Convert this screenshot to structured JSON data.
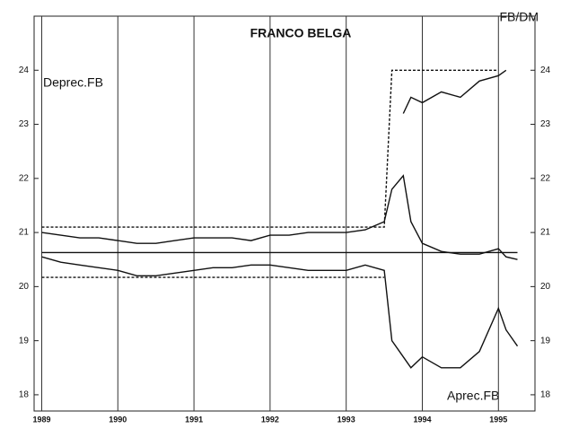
{
  "chart_data": {
    "type": "line",
    "title": "FRANCO BELGA",
    "y_label": "FB/DM",
    "annotations": [
      "Deprec.FB",
      "Aprec.FB"
    ],
    "x": [
      1989.0,
      1989.25,
      1989.5,
      1989.75,
      1990.0,
      1990.25,
      1990.5,
      1990.75,
      1991.0,
      1991.25,
      1991.5,
      1991.75,
      1992.0,
      1992.25,
      1992.5,
      1992.75,
      1993.0,
      1993.25,
      1993.5,
      1993.6,
      1993.75,
      1993.85,
      1994.0,
      1994.25,
      1994.5,
      1994.75,
      1995.0,
      1995.1,
      1995.25
    ],
    "xlim": [
      1988.9,
      1995.48
    ],
    "xticks": [
      1989,
      1990,
      1991,
      1992,
      1993,
      1994,
      1995
    ],
    "ylim": [
      17.7,
      25.0
    ],
    "yticks": [
      18,
      19,
      20,
      21,
      22,
      23,
      24
    ],
    "grid": true,
    "series": [
      {
        "color": "#111111",
        "values": [
          21.0,
          20.95,
          20.9,
          20.9,
          20.85,
          20.8,
          20.8,
          20.85,
          20.9,
          20.9,
          20.9,
          20.85,
          20.95,
          20.95,
          21.0,
          21.0,
          21.0,
          21.05,
          21.2,
          21.8,
          22.05,
          21.2,
          20.8,
          20.65,
          20.6,
          20.6,
          20.7,
          20.55,
          20.5
        ]
      },
      {
        "color": "#111111",
        "values": [
          20.55,
          20.45,
          20.4,
          20.35,
          20.3,
          20.2,
          20.2,
          20.25,
          20.3,
          20.35,
          20.35,
          20.4,
          20.4,
          20.35,
          20.3,
          20.3,
          20.3,
          20.4,
          20.3,
          19.0,
          18.7,
          18.5,
          18.7,
          18.5,
          18.5,
          18.8,
          19.6,
          19.2,
          18.9
        ]
      },
      {
        "color": "#111111",
        "values": [
          null,
          null,
          null,
          null,
          null,
          null,
          null,
          null,
          null,
          null,
          null,
          null,
          null,
          null,
          null,
          null,
          null,
          null,
          null,
          null,
          23.2,
          23.5,
          23.4,
          23.6,
          23.5,
          23.8,
          23.9,
          24.0,
          null
        ]
      },
      {
        "color": "#111111",
        "values": [
          20.63,
          20.63,
          20.63,
          20.63,
          20.63,
          20.63,
          20.63,
          20.63,
          20.63,
          20.63,
          20.63,
          20.63,
          20.63,
          20.63,
          20.63,
          20.63,
          20.63,
          20.63,
          20.63,
          20.63,
          20.63,
          20.63,
          20.63,
          20.63,
          20.63,
          20.63,
          20.63,
          20.63,
          20.63
        ]
      },
      {
        "color": "#111111",
        "dashed": true,
        "values": [
          21.1,
          21.1,
          21.1,
          21.1,
          21.1,
          21.1,
          21.1,
          21.1,
          21.1,
          21.1,
          21.1,
          21.1,
          21.1,
          21.1,
          21.1,
          21.1,
          21.1,
          21.1,
          21.1,
          24.0,
          24.0,
          24.0,
          24.0,
          24.0,
          24.0,
          24.0,
          24.0,
          null,
          null
        ]
      },
      {
        "color": "#111111",
        "dashed": true,
        "values": [
          20.17,
          20.17,
          20.17,
          20.17,
          20.17,
          20.17,
          20.17,
          20.17,
          20.17,
          20.17,
          20.17,
          20.17,
          20.17,
          20.17,
          20.17,
          20.17,
          20.17,
          20.17,
          20.17,
          null,
          null,
          null,
          null,
          null,
          null,
          null,
          null,
          null,
          null
        ]
      }
    ]
  }
}
